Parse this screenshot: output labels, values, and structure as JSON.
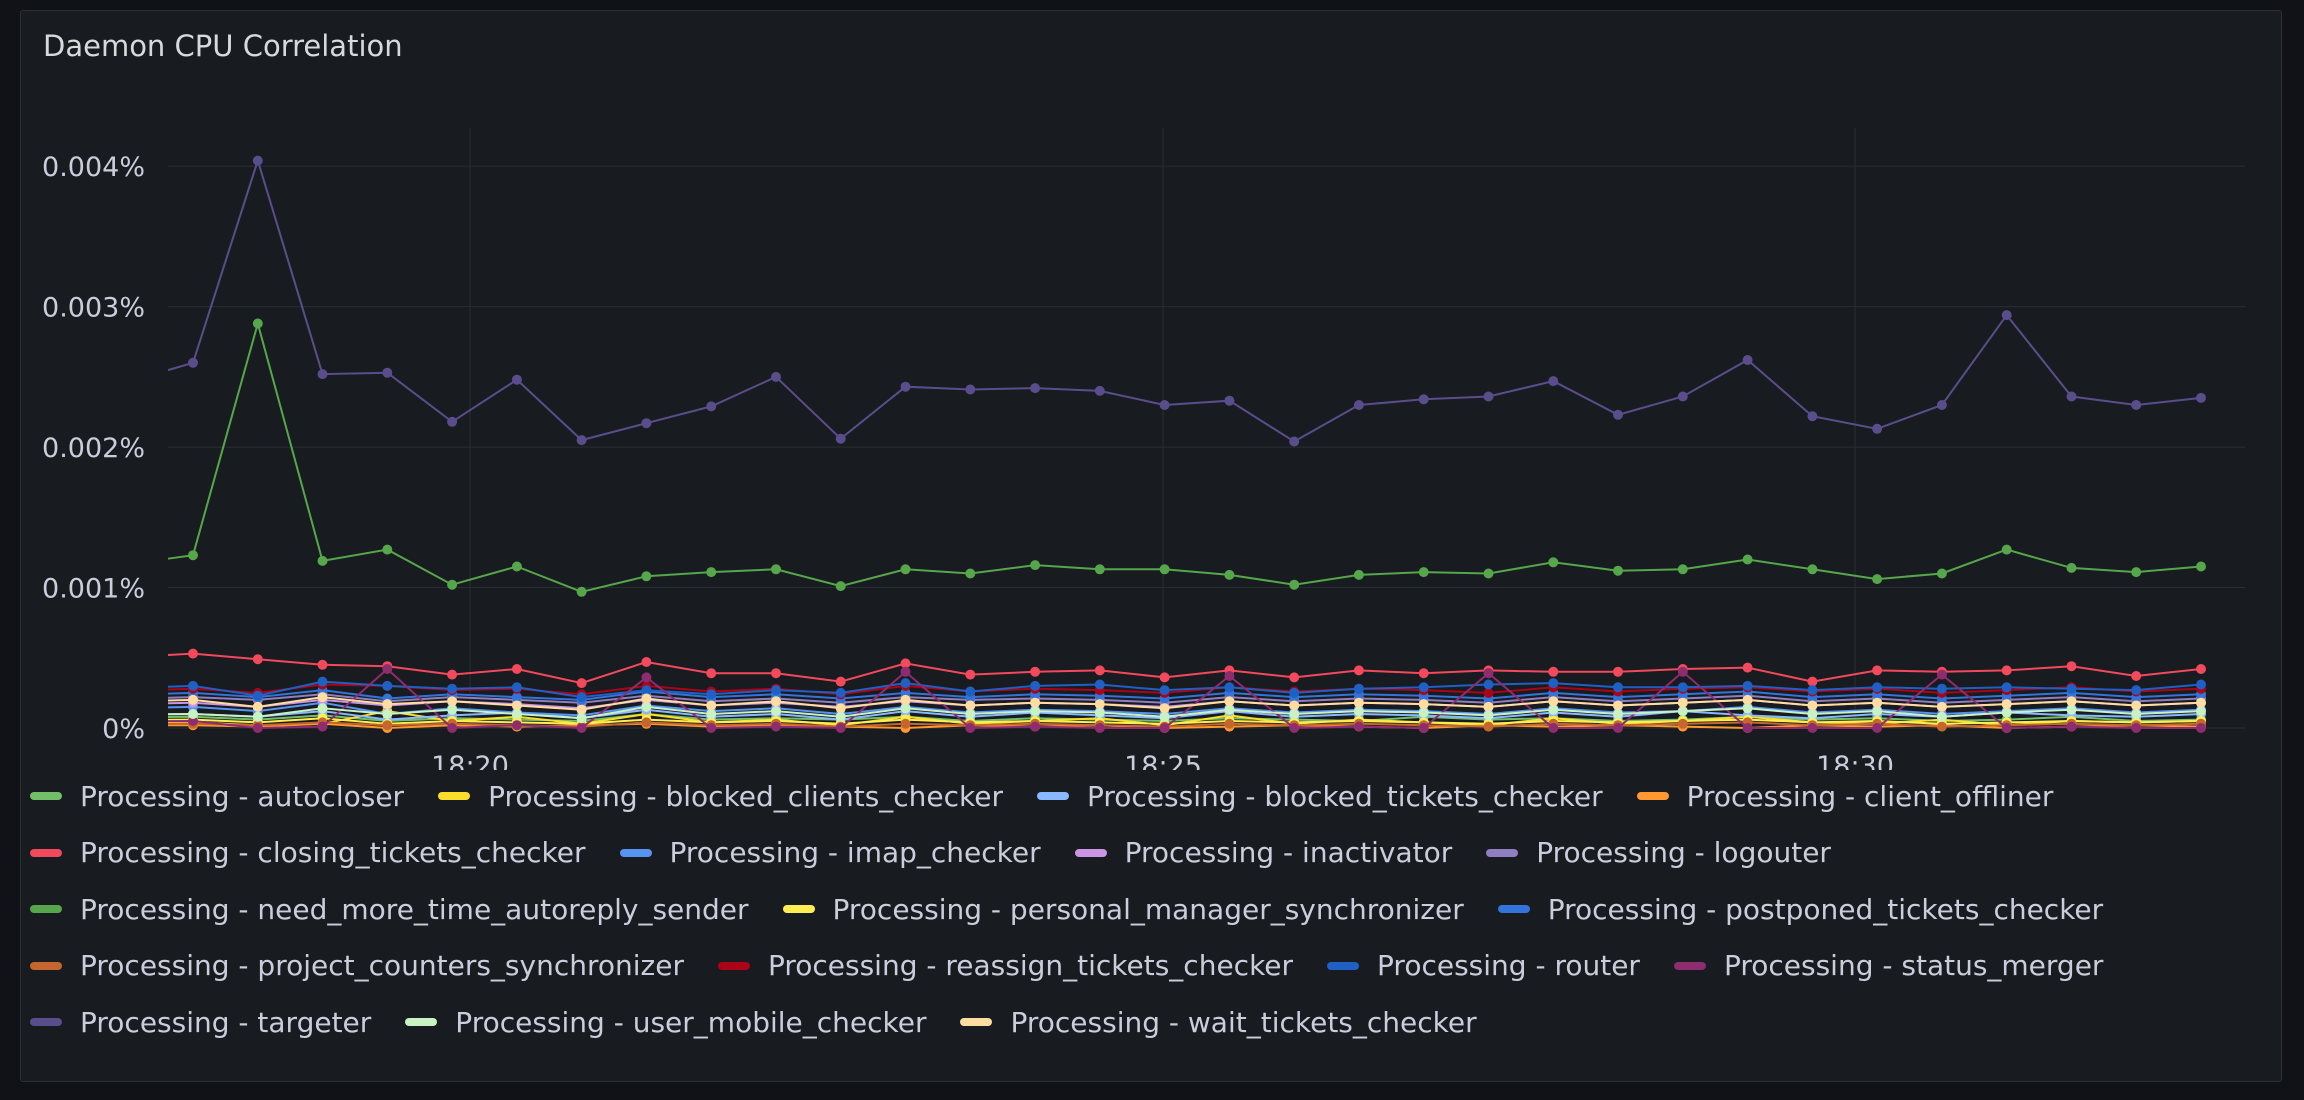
{
  "panel": {
    "title": "Daemon CPU Correlation"
  },
  "colors": {
    "background": "#181b1f",
    "grid": "#2a2d33",
    "text": "#ccccdc"
  },
  "chart_data": {
    "type": "line",
    "title": "Daemon CPU Correlation",
    "xlabel": "",
    "ylabel": "",
    "y_unit": "%",
    "ylim": [
      0,
      0.0044
    ],
    "y_ticks": [
      0,
      0.001,
      0.002,
      0.003,
      0.004
    ],
    "y_tick_labels": [
      "0%",
      "0.001%",
      "0.002%",
      "0.003%",
      "0.004%"
    ],
    "x_ticks": [
      "18:20",
      "18:25",
      "18:30"
    ],
    "x": [
      "18:17:40",
      "18:18:10",
      "18:18:40",
      "18:19:10",
      "18:19:40",
      "18:20:10",
      "18:20:40",
      "18:21:10",
      "18:21:40",
      "18:22:10",
      "18:22:40",
      "18:23:10",
      "18:23:40",
      "18:24:10",
      "18:24:40",
      "18:25:10",
      "18:25:40",
      "18:26:10",
      "18:26:40",
      "18:27:10",
      "18:27:40",
      "18:28:10",
      "18:28:40",
      "18:29:10",
      "18:29:40",
      "18:30:10",
      "18:30:40",
      "18:31:10",
      "18:31:40",
      "18:32:10",
      "18:32:40",
      "18:33:10"
    ],
    "grid": true,
    "legend": "bottom",
    "series": [
      {
        "name": "Processing - autocloser",
        "color": "#73bf69",
        "values": [
          8e-05,
          6e-05,
          9e-05,
          5e-05,
          7e-05,
          6e-05,
          5e-05,
          0.0001,
          6e-05,
          7e-05,
          6e-05,
          8e-05,
          5e-05,
          7e-05,
          6e-05,
          5e-05,
          7e-05,
          6e-05,
          5e-05,
          8e-05,
          6e-05,
          7e-05,
          5e-05,
          6e-05,
          8e-05,
          6e-05,
          7e-05,
          5e-05,
          6e-05,
          8e-05,
          5e-05,
          6e-05
        ]
      },
      {
        "name": "Processing - blocked_clients_checker",
        "color": "#fade2a",
        "values": [
          4e-05,
          2e-05,
          3e-05,
          0.00012,
          5e-05,
          8e-05,
          3e-05,
          0.0001,
          4e-05,
          6e-05,
          2e-05,
          8e-05,
          3e-05,
          5e-05,
          7e-05,
          2e-05,
          9e-05,
          3e-05,
          6e-05,
          4e-05,
          2e-05,
          7e-05,
          3e-05,
          5e-05,
          8e-05,
          4e-05,
          3e-05,
          6e-05,
          2e-05,
          5e-05,
          4e-05,
          5e-05
        ]
      },
      {
        "name": "Processing - blocked_tickets_checker",
        "color": "#8ab8ff",
        "values": [
          0.0001,
          8e-05,
          0.00012,
          6e-05,
          9e-05,
          0.00011,
          7e-05,
          0.00013,
          8e-05,
          0.0001,
          6e-05,
          0.00012,
          8e-05,
          0.00011,
          9e-05,
          7e-05,
          0.00012,
          8e-05,
          0.0001,
          9e-05,
          7e-05,
          0.00011,
          8e-05,
          0.00012,
          9e-05,
          7e-05,
          0.0001,
          8e-05,
          0.00011,
          9e-05,
          8e-05,
          0.0001
        ]
      },
      {
        "name": "Processing - client_offliner",
        "color": "#ff9830",
        "values": [
          2e-05,
          1e-05,
          3e-05,
          0.0,
          2e-05,
          1e-05,
          2e-05,
          3e-05,
          1e-05,
          2e-05,
          1e-05,
          0.0,
          2e-05,
          1e-05,
          2e-05,
          0.0,
          1e-05,
          2e-05,
          1e-05,
          0.0,
          2e-05,
          1e-05,
          2e-05,
          1e-05,
          0.0,
          2e-05,
          1e-05,
          2e-05,
          0.0,
          1e-05,
          2e-05,
          1e-05
        ]
      },
      {
        "name": "Processing - closing_tickets_checker",
        "color": "#f2495c",
        "values": [
          0.00053,
          0.00049,
          0.00045,
          0.00044,
          0.00038,
          0.00042,
          0.00032,
          0.00047,
          0.00039,
          0.00039,
          0.00033,
          0.00046,
          0.00038,
          0.0004,
          0.00041,
          0.00036,
          0.00041,
          0.00036,
          0.00041,
          0.00039,
          0.00041,
          0.0004,
          0.0004,
          0.00042,
          0.00043,
          0.00033,
          0.00041,
          0.0004,
          0.00041,
          0.00044,
          0.00037,
          0.00042
        ]
      },
      {
        "name": "Processing - imap_checker",
        "color": "#5794f2",
        "values": [
          0.00015,
          0.00012,
          0.00018,
          0.0001,
          0.00014,
          0.00011,
          9e-05,
          0.00016,
          0.00012,
          0.00014,
          0.0001,
          0.00015,
          0.00011,
          0.00013,
          0.00012,
          0.0001,
          0.00014,
          0.00011,
          0.00013,
          0.00012,
          0.0001,
          0.00014,
          0.00011,
          0.00012,
          0.00015,
          0.00011,
          0.00013,
          0.0001,
          0.00012,
          0.00014,
          0.00011,
          0.00013
        ]
      },
      {
        "name": "Processing - inactivator",
        "color": "#ca95e5",
        "values": [
          0.00018,
          0.00015,
          0.0002,
          0.00016,
          0.00019,
          0.00017,
          0.00014,
          0.0002,
          0.00016,
          0.00018,
          0.00015,
          0.00019,
          0.00016,
          0.00018,
          0.00017,
          0.00015,
          0.00019,
          0.00016,
          0.00018,
          0.00017,
          0.00015,
          0.00019,
          0.00016,
          0.00018,
          0.0002,
          0.00016,
          0.00018,
          0.00015,
          0.00017,
          0.00019,
          0.00016,
          0.00018
        ]
      },
      {
        "name": "Processing - logouter",
        "color": "#8f7ec0",
        "values": [
          0.00022,
          0.0002,
          0.00024,
          0.00019,
          0.00022,
          0.0002,
          0.00018,
          0.00023,
          0.00019,
          0.00021,
          0.00018,
          0.00022,
          0.0002,
          0.00021,
          0.0002,
          0.00018,
          0.00022,
          0.00019,
          0.00021,
          0.0002,
          0.00018,
          0.00022,
          0.00019,
          0.00021,
          0.00023,
          0.00019,
          0.00021,
          0.00018,
          0.0002,
          0.00022,
          0.00019,
          0.00021
        ]
      },
      {
        "name": "Processing - need_more_time_autoreply_sender",
        "color": "#56a64b",
        "values": [
          0.00123,
          0.00288,
          0.00119,
          0.00127,
          0.00102,
          0.00115,
          0.00097,
          0.00108,
          0.00111,
          0.00113,
          0.00101,
          0.00113,
          0.0011,
          0.00116,
          0.00113,
          0.00113,
          0.00109,
          0.00102,
          0.00109,
          0.00111,
          0.0011,
          0.00118,
          0.00112,
          0.00113,
          0.0012,
          0.00113,
          0.00106,
          0.0011,
          0.00127,
          0.00114,
          0.00111,
          0.00115
        ]
      },
      {
        "name": "Processing - personal_manager_synchronizer",
        "color": "#ffee52",
        "values": [
          6e-05,
          4e-05,
          7e-05,
          3e-05,
          5e-05,
          4e-05,
          3e-05,
          6e-05,
          4e-05,
          5e-05,
          3e-05,
          6e-05,
          4e-05,
          5e-05,
          4e-05,
          3e-05,
          5e-05,
          4e-05,
          5e-05,
          4e-05,
          3e-05,
          5e-05,
          4e-05,
          5e-05,
          6e-05,
          4e-05,
          5e-05,
          3e-05,
          4e-05,
          5e-05,
          4e-05,
          5e-05
        ]
      },
      {
        "name": "Processing - postponed_tickets_checker",
        "color": "#3274d9",
        "values": [
          0.00025,
          0.00022,
          0.00027,
          0.00021,
          0.00024,
          0.00022,
          0.0002,
          0.00026,
          0.00022,
          0.00024,
          0.00021,
          0.00025,
          0.00022,
          0.00024,
          0.00023,
          0.00021,
          0.00025,
          0.00022,
          0.00024,
          0.00023,
          0.00021,
          0.00025,
          0.00022,
          0.00024,
          0.00026,
          0.00022,
          0.00024,
          0.00021,
          0.00023,
          0.00025,
          0.00022,
          0.00024
        ]
      },
      {
        "name": "Processing - project_counters_synchronizer",
        "color": "#c4662d",
        "values": [
          3e-05,
          2e-05,
          4e-05,
          2e-05,
          3e-05,
          2e-05,
          1e-05,
          4e-05,
          2e-05,
          3e-05,
          1e-05,
          3e-05,
          2e-05,
          3e-05,
          2e-05,
          1e-05,
          3e-05,
          2e-05,
          3e-05,
          2e-05,
          1e-05,
          3e-05,
          2e-05,
          3e-05,
          4e-05,
          2e-05,
          3e-05,
          1e-05,
          2e-05,
          3e-05,
          2e-05,
          3e-05
        ]
      },
      {
        "name": "Processing - reassign_tickets_checker",
        "color": "#ad0317",
        "values": [
          0.00028,
          0.00025,
          0.00031,
          0.0003,
          0.00027,
          0.00028,
          0.00024,
          0.0003,
          0.00026,
          0.00028,
          0.00024,
          0.0003,
          0.00026,
          0.00028,
          0.00027,
          0.00025,
          0.00029,
          0.00026,
          0.00028,
          0.00027,
          0.00025,
          0.00029,
          0.00026,
          0.00028,
          0.00029,
          0.00026,
          0.00028,
          0.00025,
          0.00027,
          0.00029,
          0.00026,
          0.00028
        ]
      },
      {
        "name": "Processing - router",
        "color": "#1f60c4",
        "values": [
          0.0003,
          0.00023,
          0.00033,
          0.0003,
          0.00028,
          0.00029,
          0.00022,
          0.00027,
          0.00024,
          0.00027,
          0.00025,
          0.00032,
          0.00026,
          0.0003,
          0.00031,
          0.00027,
          0.00029,
          0.00025,
          0.00028,
          0.00029,
          0.00031,
          0.00032,
          0.00029,
          0.00029,
          0.0003,
          0.00027,
          0.00029,
          0.00028,
          0.00029,
          0.00028,
          0.00027,
          0.00031
        ]
      },
      {
        "name": "Processing - status_merger",
        "color": "#8e2c70",
        "values": [
          5e-05,
          0.0,
          1e-05,
          0.00042,
          0.0,
          2e-05,
          0.0,
          0.00036,
          0.0,
          1e-05,
          0.0,
          0.0004,
          0.0,
          1e-05,
          0.0,
          0.0,
          0.00037,
          0.0,
          1e-05,
          0.0,
          0.00039,
          0.0,
          0.0,
          0.0004,
          0.0,
          0.0,
          0.0,
          0.00038,
          0.0,
          1e-05,
          0.0,
          0.0
        ]
      },
      {
        "name": "Processing - targeter",
        "color": "#5a4d8c",
        "values": [
          0.0026,
          0.00404,
          0.00252,
          0.00253,
          0.00218,
          0.00248,
          0.00205,
          0.00217,
          0.00229,
          0.0025,
          0.00206,
          0.00243,
          0.00241,
          0.00242,
          0.0024,
          0.0023,
          0.00233,
          0.00204,
          0.0023,
          0.00234,
          0.00236,
          0.00247,
          0.00223,
          0.00236,
          0.00262,
          0.00222,
          0.00213,
          0.0023,
          0.00294,
          0.00236,
          0.0023,
          0.00235
        ]
      },
      {
        "name": "Processing - user_mobile_checker",
        "color": "#c8f2c2",
        "values": [
          0.0001,
          8e-05,
          0.00014,
          0.0001,
          0.00013,
          0.0001,
          7e-05,
          0.00015,
          0.0001,
          0.00012,
          8e-05,
          0.00014,
          0.0001,
          0.00012,
          0.00011,
          8e-05,
          0.00013,
          0.0001,
          0.00012,
          0.00011,
          9e-05,
          0.00013,
          0.0001,
          0.00012,
          0.00014,
          0.0001,
          0.00012,
          8e-05,
          0.00011,
          0.00013,
          0.0001,
          0.00012
        ]
      },
      {
        "name": "Processing - wait_tickets_checker",
        "color": "#ffdda0",
        "values": [
          0.0002,
          0.00015,
          0.00022,
          0.00017,
          0.00019,
          0.00016,
          0.00013,
          0.00021,
          0.00016,
          0.00019,
          0.00014,
          0.0002,
          0.00016,
          0.00018,
          0.00017,
          0.00014,
          0.00019,
          0.00016,
          0.00018,
          0.00017,
          0.00015,
          0.00019,
          0.00016,
          0.00018,
          0.0002,
          0.00016,
          0.00018,
          0.00015,
          0.00017,
          0.00019,
          0.00016,
          0.00018
        ]
      }
    ]
  }
}
